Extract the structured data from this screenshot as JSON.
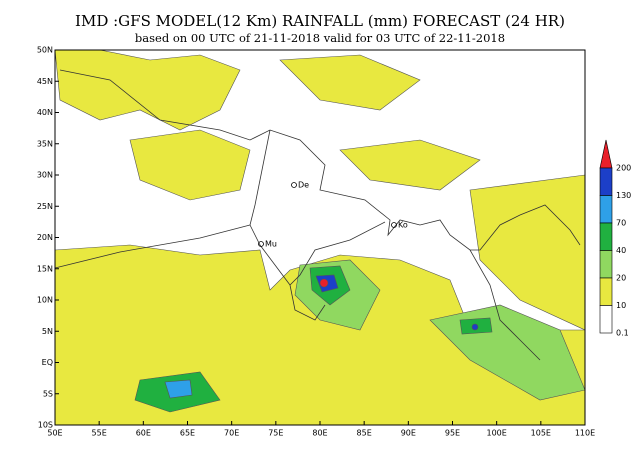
{
  "header": {
    "title": "IMD :GFS MODEL(12 Km) RAINFALL (mm) FORECAST (24 HR)",
    "subtitle": "based on 00 UTC of 21-11-2018 valid for 03 UTC of 22-11-2018"
  },
  "map": {
    "lat_labels": [
      "50N",
      "45N",
      "40N",
      "35N",
      "30N",
      "25N",
      "20N",
      "15N",
      "10N",
      "5N",
      "EQ",
      "5S",
      "10S"
    ],
    "lon_labels": [
      "50E",
      "55E",
      "60E",
      "65E",
      "70E",
      "75E",
      "80E",
      "85E",
      "90E",
      "95E",
      "100E",
      "105E",
      "110E"
    ],
    "cities": [
      {
        "label": "De"
      },
      {
        "label": "Mu"
      },
      {
        "label": "Ko"
      }
    ]
  },
  "legend": {
    "levels": [
      {
        "label": "200",
        "color": "#f07020"
      },
      {
        "label": "130",
        "color": "#1c3fc8"
      },
      {
        "label": "70",
        "color": "#2ea0e8"
      },
      {
        "label": "40",
        "color": "#20b040"
      },
      {
        "label": "20",
        "color": "#90d860"
      },
      {
        "label": "10",
        "color": "#e8e840"
      },
      {
        "label": "0.1",
        "color": "#ffffff"
      }
    ],
    "top_color": "#e8202a"
  }
}
